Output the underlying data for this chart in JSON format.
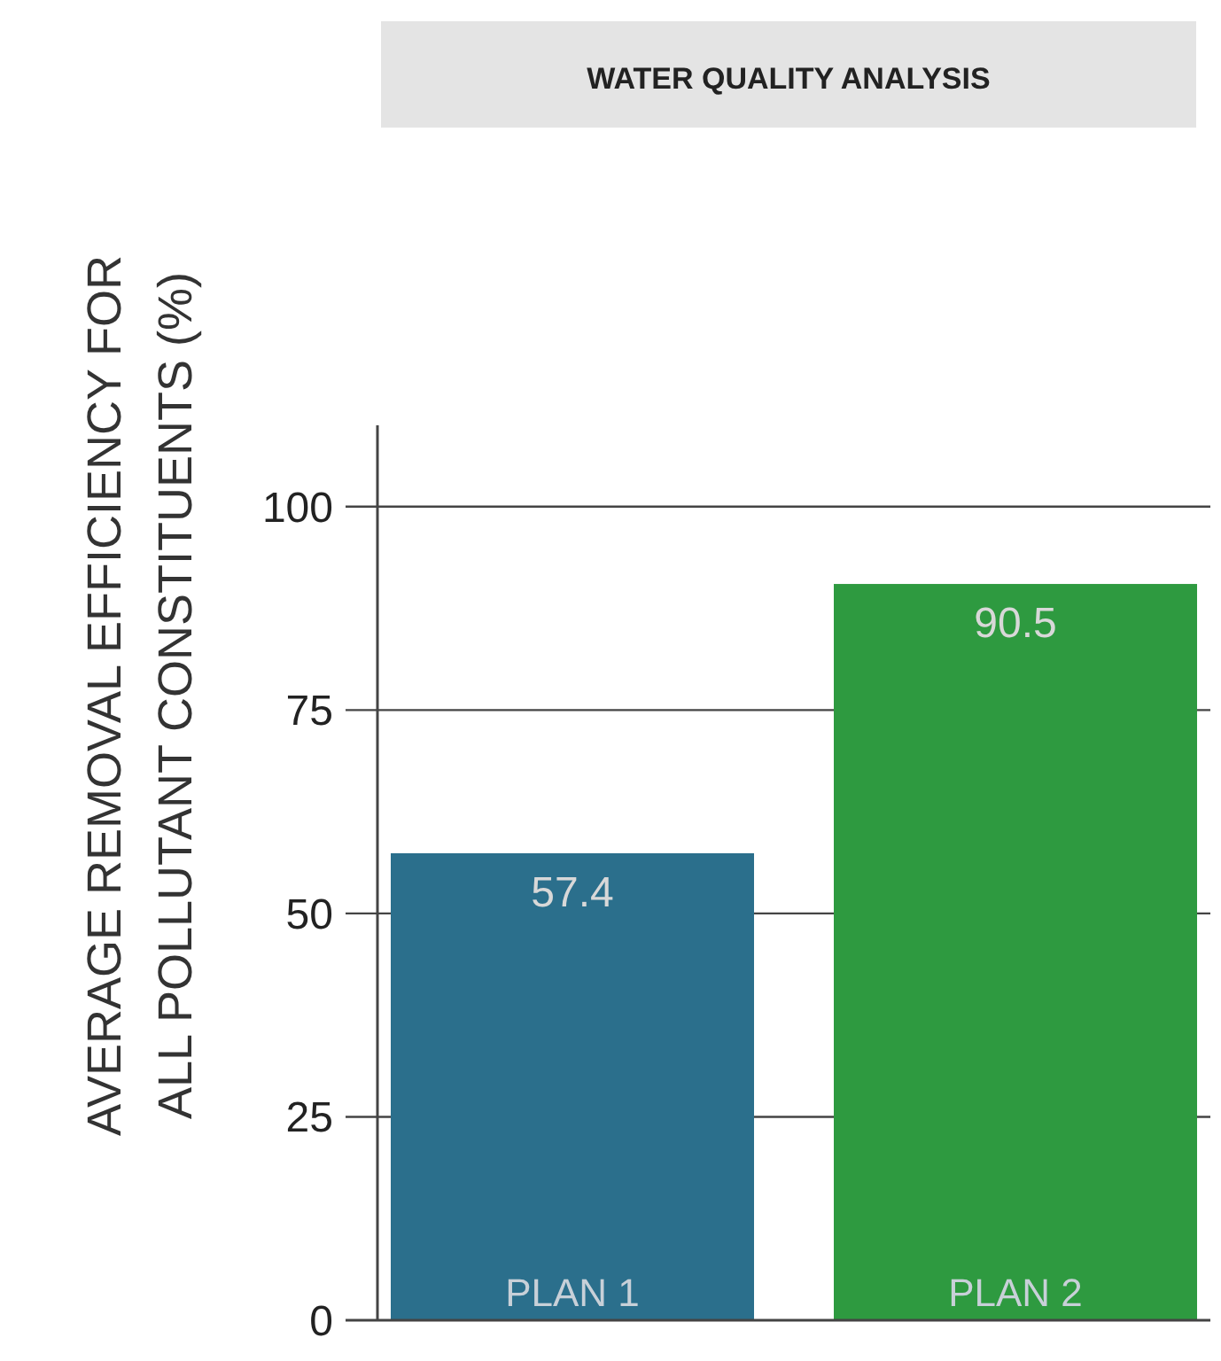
{
  "chart_data": {
    "type": "bar",
    "title": "WATER QUALITY ANALYSIS",
    "ylabel": "AVERAGE REMOVAL EFFICIENCY FOR ALL POLLUTANT CONSTITUENTS (%)",
    "categories": [
      "PLAN 1",
      "PLAN 2"
    ],
    "values": [
      57.4,
      90.5
    ],
    "colors": [
      "#2b6f8c",
      "#2e9a40"
    ],
    "data_labels": true,
    "ylim": [
      0,
      110
    ],
    "yticks": [
      0,
      25,
      50,
      75,
      100
    ],
    "grid": "y"
  }
}
